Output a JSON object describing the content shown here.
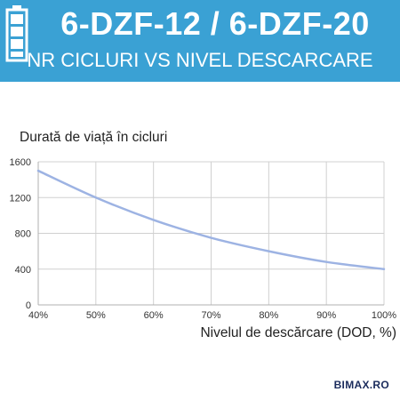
{
  "header": {
    "title": "6-DZF-12 / 6-DZF-20",
    "subtitle": "NR CICLURI VS NIVEL DESCARCARE"
  },
  "brand": "BIMAX.RO",
  "colors": {
    "header_bg": "#3aa1d4",
    "curve": "#9db3e3",
    "grid": "#d0d0d0"
  },
  "icons": {
    "header": "battery-icon"
  },
  "chart_data": {
    "type": "line",
    "title": "",
    "ylabel": "Durată de viață în cicluri",
    "xlabel": "Nivelul de descărcare (DOD, %)",
    "x_ticks": [
      "40%",
      "50%",
      "60%",
      "70%",
      "80%",
      "90%",
      "100%"
    ],
    "y_ticks": [
      "0",
      "400",
      "800",
      "1200",
      "1600"
    ],
    "xlim": [
      40,
      100
    ],
    "ylim": [
      0,
      1600
    ],
    "grid": true,
    "series": [
      {
        "x": [
          40,
          50,
          60,
          70,
          80,
          90,
          100
        ],
        "y": [
          1500,
          1200,
          950,
          750,
          600,
          480,
          400
        ]
      }
    ]
  }
}
